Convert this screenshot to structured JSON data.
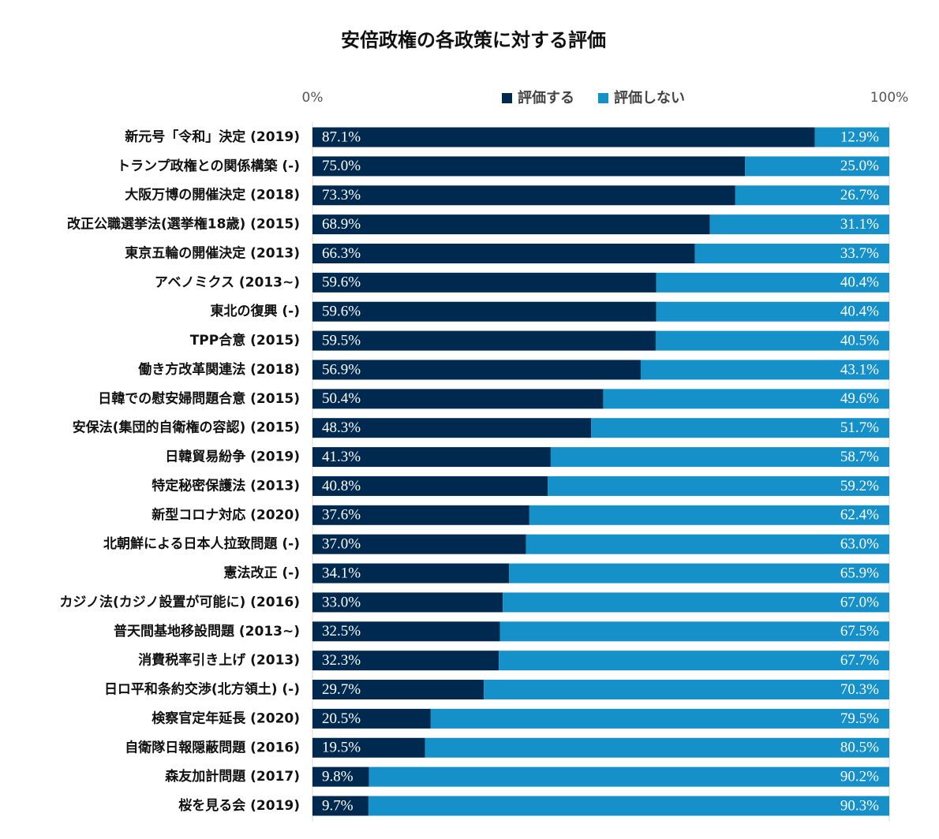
{
  "chart_data": {
    "type": "stacked_bar_horizontal",
    "title": "安倍政権の各政策に対する評価",
    "categories": [
      "新元号「令和」決定 (2019)",
      "トランプ政権との関係構築 (-)",
      "大阪万博の開催決定 (2018)",
      "改正公職選挙法(選挙権18歳) (2015)",
      "東京五輪の開催決定 (2013)",
      "アベノミクス (2013~)",
      "東北の復興 (-)",
      "TPP合意 (2015)",
      "働き方改革関連法 (2018)",
      "日韓での慰安婦問題合意 (2015)",
      "安保法(集団的自衛権の容認) (2015)",
      "日韓貿易紛争 (2019)",
      "特定秘密保護法 (2013)",
      "新型コロナ対応 (2020)",
      "北朝鮮による日本人拉致問題 (-)",
      "憲法改正 (-)",
      "カジノ法(カジノ設置が可能に) (2016)",
      "普天間基地移設問題 (2013~)",
      "消費税率引き上げ (2013)",
      "日ロ平和条約交渉(北方領土) (-)",
      "検察官定年延長 (2020)",
      "自衛隊日報隠蔽問題 (2016)",
      "森友加計問題 (2017)",
      "桜を見る会 (2019)"
    ],
    "series": [
      {
        "name": "評価する",
        "color": "#00294f",
        "values": [
          87.1,
          75.0,
          73.3,
          68.9,
          66.3,
          59.6,
          59.6,
          59.5,
          56.9,
          50.4,
          48.3,
          41.3,
          40.8,
          37.6,
          37.0,
          34.1,
          33.0,
          32.5,
          32.3,
          29.7,
          20.5,
          19.5,
          9.8,
          9.7
        ],
        "value_labels": [
          "87.1%",
          "75.0%",
          "73.3%",
          "68.9%",
          "66.3%",
          "59.6%",
          "59.6%",
          "59.5%",
          "56.9%",
          "50.4%",
          "48.3%",
          "41.3%",
          "40.8%",
          "37.6%",
          "37.0%",
          "34.1%",
          "33.0%",
          "32.5%",
          "32.3%",
          "29.7%",
          "20.5%",
          "19.5%",
          "9.8%",
          "9.7%"
        ]
      },
      {
        "name": "評価しない",
        "color": "#1590c8",
        "values": [
          12.9,
          25.0,
          26.7,
          31.1,
          33.7,
          40.4,
          40.4,
          40.5,
          43.1,
          49.6,
          51.7,
          58.7,
          59.2,
          62.4,
          63.0,
          65.9,
          67.0,
          67.5,
          67.7,
          70.3,
          79.5,
          80.5,
          90.2,
          90.3
        ],
        "value_labels": [
          "12.9%",
          "25.0%",
          "26.7%",
          "31.1%",
          "33.7%",
          "40.4%",
          "40.4%",
          "40.5%",
          "43.1%",
          "49.6%",
          "51.7%",
          "58.7%",
          "59.2%",
          "62.4%",
          "63.0%",
          "65.9%",
          "67.0%",
          "67.5%",
          "67.7%",
          "70.3%",
          "79.5%",
          "80.5%",
          "90.2%",
          "90.3%"
        ]
      }
    ],
    "xlim": [
      0,
      100
    ],
    "xticks": [
      {
        "value": 0,
        "label": "0%"
      },
      {
        "value": 100,
        "label": "100%"
      }
    ],
    "legend": "top",
    "grid": true
  }
}
